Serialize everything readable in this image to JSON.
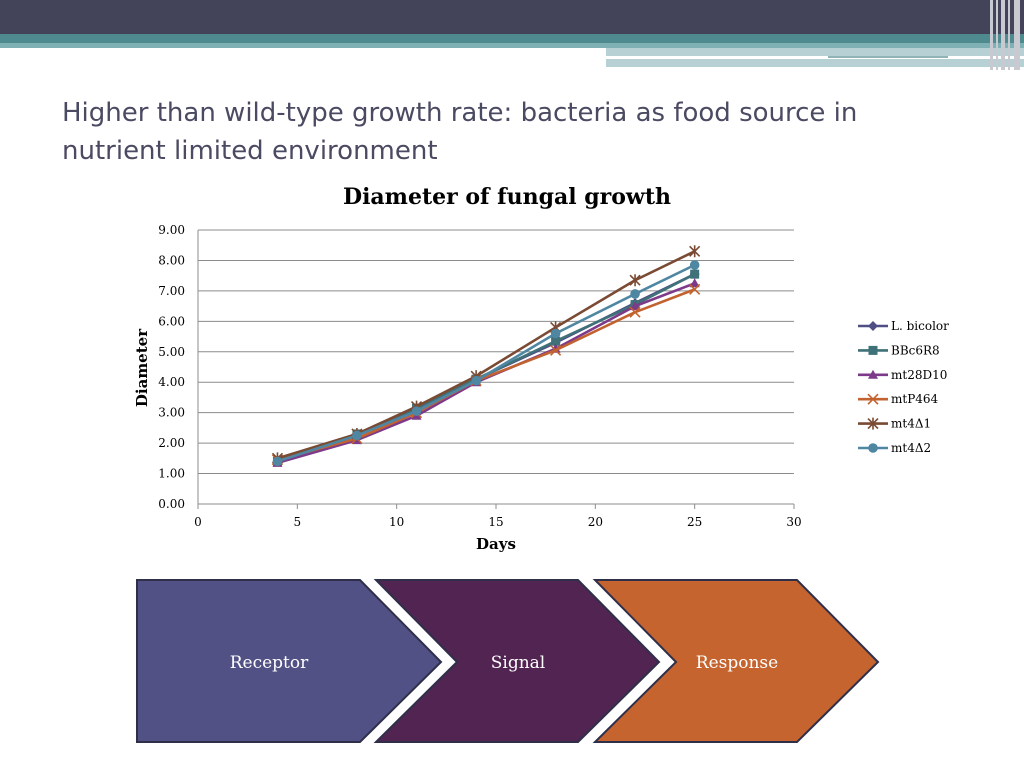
{
  "slide": {
    "title": "Higher than wild-type growth rate: bacteria as food source in nutrient limited environment"
  },
  "chart_data": {
    "type": "line",
    "title": "Diameter of fungal growth",
    "xlabel": "Days",
    "ylabel": "Diameter",
    "xlim": [
      0,
      30
    ],
    "ylim": [
      0,
      9
    ],
    "x_ticks": [
      "0",
      "5",
      "10",
      "15",
      "20",
      "25",
      "30"
    ],
    "y_ticks": [
      "0.00",
      "1.00",
      "2.00",
      "3.00",
      "4.00",
      "5.00",
      "6.00",
      "7.00",
      "8.00",
      "9.00"
    ],
    "grid": "horizontal",
    "legend_position": "right",
    "x": [
      4,
      8,
      11,
      14,
      18,
      22,
      25
    ],
    "series": [
      {
        "name": "L. bicolor",
        "color": "#4f4f86",
        "marker": "diamond",
        "values": [
          1.4,
          2.25,
          3.1,
          4.1,
          5.3,
          6.6,
          7.55
        ]
      },
      {
        "name": "BBc6R8",
        "color": "#3f7179",
        "marker": "square",
        "values": [
          1.4,
          2.3,
          3.15,
          4.1,
          5.35,
          6.55,
          7.55
        ]
      },
      {
        "name": "mt28D10",
        "color": "#7d3a8a",
        "marker": "triangle",
        "values": [
          1.35,
          2.1,
          2.9,
          4.0,
          5.1,
          6.5,
          7.25
        ]
      },
      {
        "name": "mtP464",
        "color": "#c2622f",
        "marker": "x",
        "values": [
          1.45,
          2.15,
          3.0,
          4.05,
          5.05,
          6.3,
          7.05
        ]
      },
      {
        "name": "mt4Δ1",
        "color": "#7a4a33",
        "marker": "star",
        "values": [
          1.5,
          2.3,
          3.2,
          4.2,
          5.8,
          7.35,
          8.3
        ]
      },
      {
        "name": "mt4Δ2",
        "color": "#4f86a2",
        "marker": "circle",
        "values": [
          1.4,
          2.25,
          3.05,
          4.05,
          5.6,
          6.9,
          7.85
        ]
      }
    ]
  },
  "process": {
    "steps": [
      {
        "label": "Receptor",
        "color": "#525186"
      },
      {
        "label": "Signal",
        "color": "#512451"
      },
      {
        "label": "Response",
        "color": "#c5642f"
      }
    ]
  }
}
